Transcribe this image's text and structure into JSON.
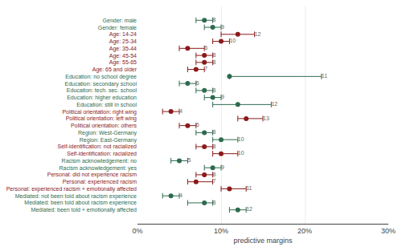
{
  "chart_data": {
    "type": "scatter",
    "orientation": "horizontal",
    "xlabel": "predictive margins",
    "categories": [
      "Gender: male",
      "Gender: female",
      "Age: 14-24",
      "Age: 25-34",
      "Age: 35-44",
      "Age: 45-54",
      "Age: 55-65",
      "Age: 65 and older",
      "Education: no school degree",
      "Education: secondary school",
      "Education: tech. sec. school",
      "Education: higher education",
      "Education: still in school",
      "Political orientation: right wing",
      "Political orientation: left wing",
      "Political orientation: others",
      "Region: West-Germany",
      "Region: East-Germany",
      "Self-identification: not racialized",
      "Self-identification: racialized",
      "Racism acknowledgement: no",
      "Racism acknowledgement: yes",
      "Personal: did not experience racism",
      "Personal: experienced racism",
      "Personal: experienced racism + emotionally affected",
      "Mediated: not been told about racism experience",
      "Mediated: been told about racism experience",
      "Mediated: been told + emotionally affected"
    ],
    "values": [
      8,
      9,
      12,
      10,
      6,
      8,
      8,
      7,
      11,
      6,
      8,
      9,
      12,
      4,
      13,
      6,
      8,
      10,
      8,
      10,
      5,
      9,
      8,
      7,
      11,
      4,
      8,
      12
    ],
    "ci_lo": [
      7,
      8,
      10,
      9,
      5,
      7,
      7,
      6,
      11,
      5,
      7,
      8,
      9,
      3,
      12,
      5,
      7,
      9,
      7,
      9,
      4,
      8,
      7,
      6,
      10,
      3,
      6,
      11
    ],
    "ci_hi": [
      9,
      10,
      14,
      11,
      8,
      9,
      9,
      8,
      22,
      7,
      9,
      10,
      16,
      5,
      15,
      7,
      9,
      12,
      9,
      12,
      6,
      10,
      9,
      9,
      13,
      5,
      9,
      13
    ],
    "colors": [
      "#2d6b4f",
      "#2d6b4f",
      "#8b1a1a",
      "#8b1a1a",
      "#8b1a1a",
      "#8b1a1a",
      "#8b1a1a",
      "#8b1a1a",
      "#2d6b4f",
      "#2d6b4f",
      "#2d6b4f",
      "#2d6b4f",
      "#2d6b4f",
      "#8b1a1a",
      "#8b1a1a",
      "#8b1a1a",
      "#2d6b4f",
      "#2d6b4f",
      "#8b1a1a",
      "#8b1a1a",
      "#2d6b4f",
      "#2d6b4f",
      "#8b1a1a",
      "#8b1a1a",
      "#8b1a1a",
      "#2d6b4f",
      "#2d6b4f",
      "#2d6b4f"
    ],
    "xlim": [
      0,
      30
    ],
    "xticks": [
      {
        "value": 0,
        "label": "0%"
      },
      {
        "value": 10,
        "label": "10%"
      },
      {
        "value": 20,
        "label": "20%"
      },
      {
        "value": 30,
        "label": "30%"
      }
    ],
    "grid": true,
    "data_labels": true
  }
}
